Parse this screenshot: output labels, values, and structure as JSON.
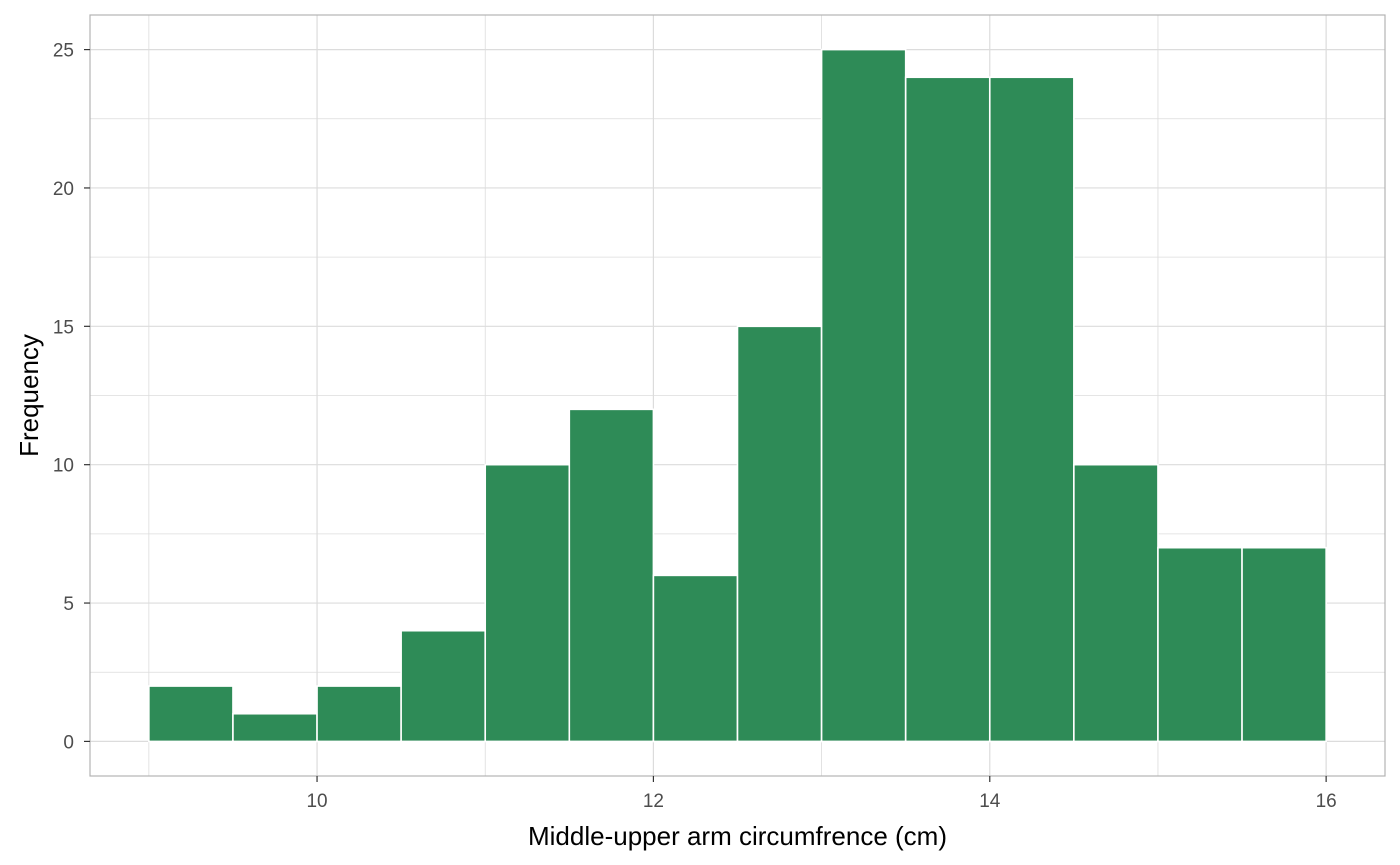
{
  "chart_data": {
    "type": "bar",
    "subtype": "histogram",
    "title": "",
    "xlabel": "Middle-upper arm circumfrence (cm)",
    "ylabel": "Frequency",
    "bin_width": 0.5,
    "bins": [
      {
        "start": 9.0,
        "end": 9.5,
        "count": 2
      },
      {
        "start": 9.5,
        "end": 10.0,
        "count": 1
      },
      {
        "start": 10.0,
        "end": 10.5,
        "count": 2
      },
      {
        "start": 10.5,
        "end": 11.0,
        "count": 4
      },
      {
        "start": 11.0,
        "end": 11.5,
        "count": 10
      },
      {
        "start": 11.5,
        "end": 12.0,
        "count": 12
      },
      {
        "start": 12.0,
        "end": 12.5,
        "count": 6
      },
      {
        "start": 12.5,
        "end": 13.0,
        "count": 15
      },
      {
        "start": 13.0,
        "end": 13.5,
        "count": 25
      },
      {
        "start": 13.5,
        "end": 14.0,
        "count": 24
      },
      {
        "start": 14.0,
        "end": 14.5,
        "count": 24
      },
      {
        "start": 14.5,
        "end": 15.0,
        "count": 10
      },
      {
        "start": 15.0,
        "end": 15.5,
        "count": 7
      },
      {
        "start": 15.5,
        "end": 16.0,
        "count": 7
      }
    ],
    "xlim": [
      8.65,
      16.35
    ],
    "ylim": [
      -1.25,
      26.25
    ],
    "x_ticks": [
      10,
      12,
      14,
      16
    ],
    "y_ticks": [
      0,
      5,
      10,
      15,
      20,
      25
    ],
    "x_tick_labels": [
      "10",
      "12",
      "14",
      "16"
    ],
    "y_tick_labels": [
      "0",
      "5",
      "10",
      "15",
      "20",
      "25"
    ],
    "grid": true,
    "colors": {
      "bar_fill": "#2e8b57",
      "bar_outline": "#ffffff",
      "grid": "#dcdcdc",
      "panel_border": "#b3b3b3",
      "background": "#ffffff"
    }
  }
}
